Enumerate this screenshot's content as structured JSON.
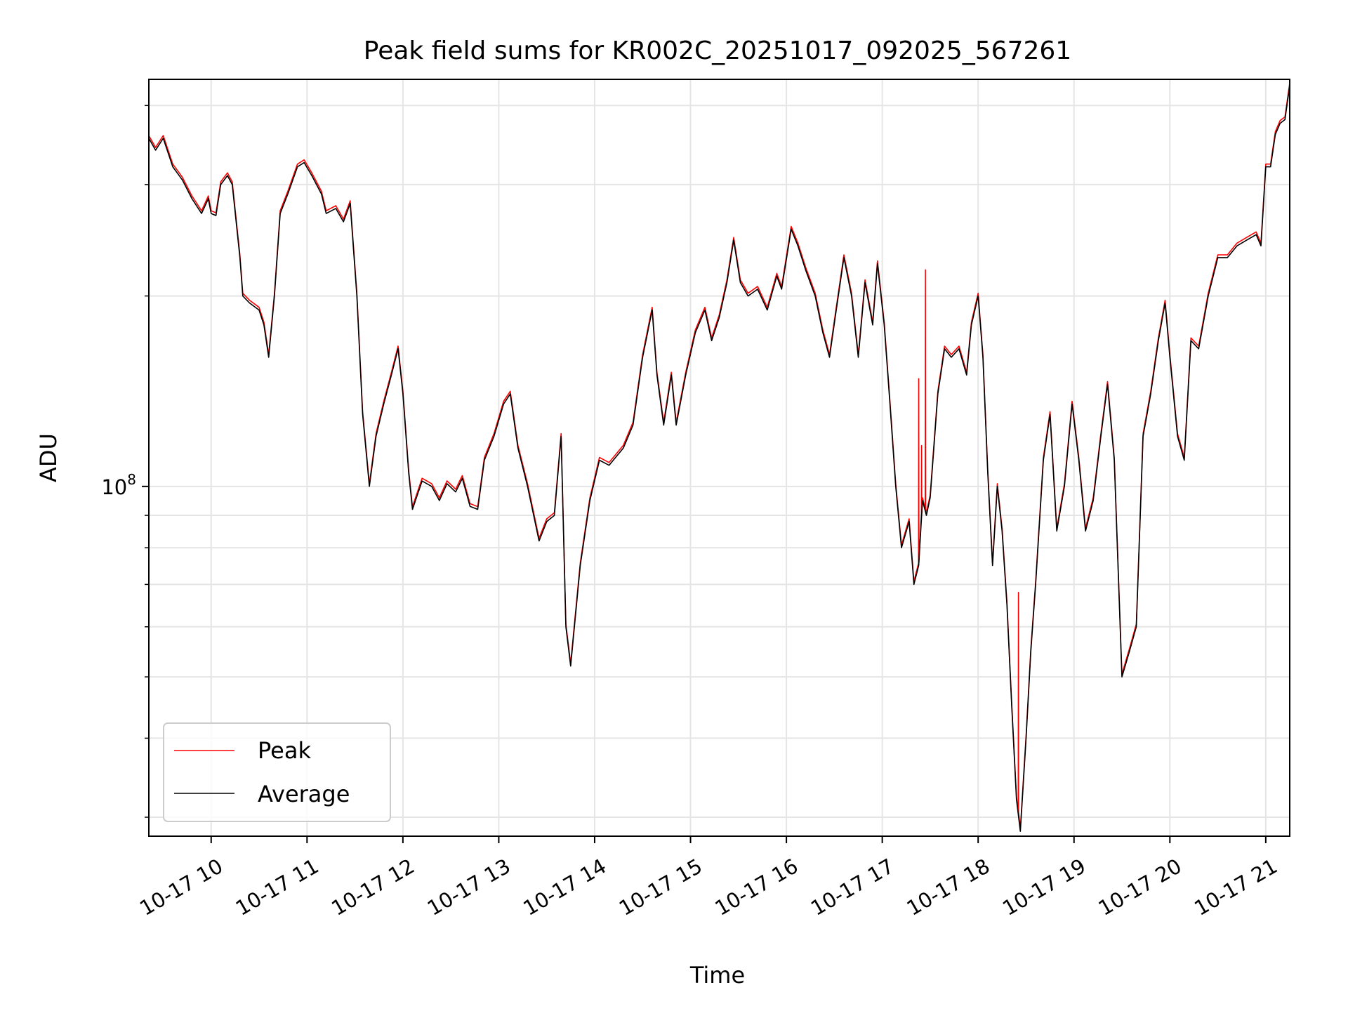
{
  "chart_data": {
    "type": "line",
    "title": "Peak field sums for KR002C_20251017_092025_567261",
    "xlabel": "Time",
    "ylabel": "ADU",
    "y_scale": "log",
    "x_unit": "hours (2025-10-17)",
    "xlim": [
      9.35,
      21.25
    ],
    "ylim": [
      28000000,
      440000000
    ],
    "y_major_ticks": [
      {
        "value": 100000000,
        "label_base": "10",
        "label_exp": "8"
      }
    ],
    "y_minor_ticks": [
      30000000,
      40000000,
      50000000,
      60000000,
      70000000,
      80000000,
      90000000,
      200000000,
      300000000,
      400000000
    ],
    "x_ticks": [
      {
        "value": 10,
        "label": "10-17 10"
      },
      {
        "value": 11,
        "label": "10-17 11"
      },
      {
        "value": 12,
        "label": "10-17 12"
      },
      {
        "value": 13,
        "label": "10-17 13"
      },
      {
        "value": 14,
        "label": "10-17 14"
      },
      {
        "value": 15,
        "label": "10-17 15"
      },
      {
        "value": 16,
        "label": "10-17 16"
      },
      {
        "value": 17,
        "label": "10-17 17"
      },
      {
        "value": 18,
        "label": "10-17 18"
      },
      {
        "value": 19,
        "label": "10-17 19"
      },
      {
        "value": 20,
        "label": "10-17 20"
      },
      {
        "value": 21,
        "label": "10-17 21"
      }
    ],
    "grid": true,
    "legend_position": "bottom-left",
    "series": [
      {
        "name": "Peak",
        "color": "#ff0000",
        "spikes": [
          {
            "x": 17.38,
            "y": 148000000
          },
          {
            "x": 17.41,
            "y": 116000000
          },
          {
            "x": 17.45,
            "y": 220000000
          },
          {
            "x": 18.42,
            "y": 68000000
          }
        ]
      },
      {
        "name": "Average",
        "color": "#000000",
        "points": [
          [
            9.35,
            355000000
          ],
          [
            9.42,
            340000000
          ],
          [
            9.5,
            355000000
          ],
          [
            9.6,
            320000000
          ],
          [
            9.7,
            305000000
          ],
          [
            9.8,
            285000000
          ],
          [
            9.9,
            270000000
          ],
          [
            9.97,
            285000000
          ],
          [
            10.0,
            270000000
          ],
          [
            10.05,
            268000000
          ],
          [
            10.1,
            300000000
          ],
          [
            10.17,
            310000000
          ],
          [
            10.22,
            300000000
          ],
          [
            10.3,
            230000000
          ],
          [
            10.33,
            200000000
          ],
          [
            10.4,
            195000000
          ],
          [
            10.5,
            190000000
          ],
          [
            10.55,
            180000000
          ],
          [
            10.6,
            160000000
          ],
          [
            10.66,
            200000000
          ],
          [
            10.72,
            270000000
          ],
          [
            10.8,
            290000000
          ],
          [
            10.9,
            320000000
          ],
          [
            10.97,
            325000000
          ],
          [
            11.05,
            310000000
          ],
          [
            11.15,
            290000000
          ],
          [
            11.2,
            270000000
          ],
          [
            11.3,
            275000000
          ],
          [
            11.38,
            262000000
          ],
          [
            11.45,
            280000000
          ],
          [
            11.52,
            200000000
          ],
          [
            11.58,
            130000000
          ],
          [
            11.65,
            100000000
          ],
          [
            11.72,
            120000000
          ],
          [
            11.8,
            135000000
          ],
          [
            11.88,
            150000000
          ],
          [
            11.95,
            165000000
          ],
          [
            12.0,
            140000000
          ],
          [
            12.06,
            105000000
          ],
          [
            12.1,
            92000000
          ],
          [
            12.2,
            102000000
          ],
          [
            12.3,
            100000000
          ],
          [
            12.38,
            95000000
          ],
          [
            12.46,
            101000000
          ],
          [
            12.55,
            98000000
          ],
          [
            12.62,
            103000000
          ],
          [
            12.7,
            93000000
          ],
          [
            12.78,
            92000000
          ],
          [
            12.85,
            110000000
          ],
          [
            12.95,
            120000000
          ],
          [
            13.05,
            135000000
          ],
          [
            13.12,
            140000000
          ],
          [
            13.2,
            115000000
          ],
          [
            13.3,
            100000000
          ],
          [
            13.42,
            82000000
          ],
          [
            13.5,
            88000000
          ],
          [
            13.58,
            90000000
          ],
          [
            13.65,
            120000000
          ],
          [
            13.7,
            60000000
          ],
          [
            13.75,
            52000000
          ],
          [
            13.85,
            75000000
          ],
          [
            13.95,
            95000000
          ],
          [
            14.05,
            110000000
          ],
          [
            14.15,
            108000000
          ],
          [
            14.3,
            115000000
          ],
          [
            14.4,
            125000000
          ],
          [
            14.5,
            160000000
          ],
          [
            14.6,
            190000000
          ],
          [
            14.65,
            150000000
          ],
          [
            14.72,
            125000000
          ],
          [
            14.8,
            150000000
          ],
          [
            14.85,
            125000000
          ],
          [
            14.95,
            150000000
          ],
          [
            15.05,
            175000000
          ],
          [
            15.15,
            190000000
          ],
          [
            15.22,
            170000000
          ],
          [
            15.3,
            185000000
          ],
          [
            15.38,
            210000000
          ],
          [
            15.45,
            245000000
          ],
          [
            15.52,
            210000000
          ],
          [
            15.6,
            200000000
          ],
          [
            15.7,
            205000000
          ],
          [
            15.8,
            190000000
          ],
          [
            15.9,
            215000000
          ],
          [
            15.95,
            205000000
          ],
          [
            16.05,
            255000000
          ],
          [
            16.12,
            240000000
          ],
          [
            16.2,
            220000000
          ],
          [
            16.3,
            200000000
          ],
          [
            16.38,
            175000000
          ],
          [
            16.45,
            160000000
          ],
          [
            16.52,
            190000000
          ],
          [
            16.6,
            230000000
          ],
          [
            16.68,
            200000000
          ],
          [
            16.75,
            160000000
          ],
          [
            16.82,
            210000000
          ],
          [
            16.9,
            180000000
          ],
          [
            16.95,
            225000000
          ],
          [
            17.02,
            180000000
          ],
          [
            17.08,
            135000000
          ],
          [
            17.14,
            100000000
          ],
          [
            17.2,
            80000000
          ],
          [
            17.28,
            88000000
          ],
          [
            17.33,
            70000000
          ],
          [
            17.38,
            75000000
          ],
          [
            17.42,
            95000000
          ],
          [
            17.46,
            90000000
          ],
          [
            17.5,
            96000000
          ],
          [
            17.58,
            140000000
          ],
          [
            17.65,
            165000000
          ],
          [
            17.72,
            160000000
          ],
          [
            17.8,
            165000000
          ],
          [
            17.88,
            150000000
          ],
          [
            17.93,
            180000000
          ],
          [
            18.0,
            200000000
          ],
          [
            18.05,
            160000000
          ],
          [
            18.1,
            105000000
          ],
          [
            18.15,
            75000000
          ],
          [
            18.2,
            100000000
          ],
          [
            18.25,
            85000000
          ],
          [
            18.3,
            65000000
          ],
          [
            18.35,
            45000000
          ],
          [
            18.4,
            32000000
          ],
          [
            18.44,
            28500000
          ],
          [
            18.5,
            40000000
          ],
          [
            18.55,
            55000000
          ],
          [
            18.6,
            70000000
          ],
          [
            18.68,
            110000000
          ],
          [
            18.75,
            130000000
          ],
          [
            18.82,
            85000000
          ],
          [
            18.9,
            100000000
          ],
          [
            18.98,
            135000000
          ],
          [
            19.05,
            110000000
          ],
          [
            19.12,
            85000000
          ],
          [
            19.2,
            95000000
          ],
          [
            19.28,
            120000000
          ],
          [
            19.35,
            145000000
          ],
          [
            19.42,
            110000000
          ],
          [
            19.5,
            50000000
          ],
          [
            19.58,
            55000000
          ],
          [
            19.65,
            60000000
          ],
          [
            19.72,
            120000000
          ],
          [
            19.8,
            140000000
          ],
          [
            19.88,
            170000000
          ],
          [
            19.95,
            195000000
          ],
          [
            20.0,
            160000000
          ],
          [
            20.08,
            120000000
          ],
          [
            20.15,
            110000000
          ],
          [
            20.22,
            170000000
          ],
          [
            20.3,
            165000000
          ],
          [
            20.4,
            200000000
          ],
          [
            20.5,
            230000000
          ],
          [
            20.6,
            230000000
          ],
          [
            20.7,
            240000000
          ],
          [
            20.8,
            245000000
          ],
          [
            20.9,
            250000000
          ],
          [
            20.95,
            240000000
          ],
          [
            21.0,
            320000000
          ],
          [
            21.05,
            320000000
          ],
          [
            21.1,
            360000000
          ],
          [
            21.15,
            375000000
          ],
          [
            21.2,
            380000000
          ],
          [
            21.25,
            430000000
          ]
        ]
      }
    ]
  }
}
